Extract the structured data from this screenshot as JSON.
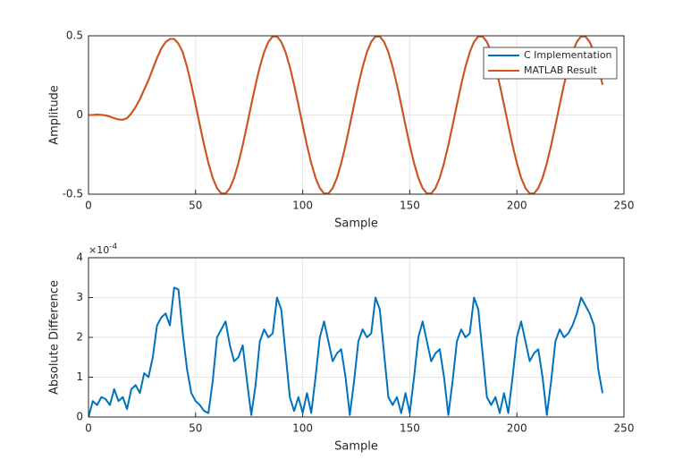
{
  "chart_data": [
    {
      "type": "line",
      "xlabel": "Sample",
      "ylabel": "Amplitude",
      "x": [
        0,
        2,
        4,
        6,
        8,
        10,
        12,
        14,
        16,
        18,
        20,
        22,
        24,
        26,
        28,
        30,
        32,
        34,
        36,
        38,
        40,
        42,
        44,
        46,
        48,
        50,
        52,
        54,
        56,
        58,
        60,
        62,
        64,
        66,
        68,
        70,
        72,
        74,
        76,
        78,
        80,
        82,
        84,
        86,
        88,
        90,
        92,
        94,
        96,
        98,
        100,
        102,
        104,
        106,
        108,
        110,
        112,
        114,
        116,
        118,
        120,
        122,
        124,
        126,
        128,
        130,
        132,
        134,
        136,
        138,
        140,
        142,
        144,
        146,
        148,
        150,
        152,
        154,
        156,
        158,
        160,
        162,
        164,
        166,
        168,
        170,
        172,
        174,
        176,
        178,
        180,
        182,
        184,
        186,
        188,
        190,
        192,
        194,
        196,
        198,
        200,
        202,
        204,
        206,
        208,
        210,
        212,
        214,
        216,
        218,
        220,
        222,
        224,
        226,
        228,
        230,
        232,
        234,
        236,
        238,
        240
      ],
      "series": [
        {
          "name": "C Implementation",
          "color": "#0072BD",
          "values": [
            0,
            0,
            0.002,
            0.001,
            -0.003,
            -0.01,
            -0.02,
            -0.028,
            -0.03,
            -0.02,
            0.01,
            0.05,
            0.1,
            0.16,
            0.22,
            0.29,
            0.36,
            0.42,
            0.46,
            0.48,
            0.48,
            0.45,
            0.397,
            0.304,
            0.191,
            0.065,
            -0.065,
            -0.191,
            -0.304,
            -0.397,
            -0.462,
            -0.496,
            -0.496,
            -0.462,
            -0.397,
            -0.304,
            -0.191,
            -0.065,
            0.065,
            0.191,
            0.304,
            0.397,
            0.462,
            0.496,
            0.496,
            0.462,
            0.397,
            0.304,
            0.191,
            0.065,
            -0.065,
            -0.191,
            -0.304,
            -0.397,
            -0.462,
            -0.496,
            -0.496,
            -0.462,
            -0.397,
            -0.304,
            -0.191,
            -0.065,
            0.065,
            0.191,
            0.304,
            0.397,
            0.462,
            0.496,
            0.496,
            0.462,
            0.397,
            0.304,
            0.191,
            0.065,
            -0.065,
            -0.191,
            -0.304,
            -0.397,
            -0.462,
            -0.496,
            -0.496,
            -0.462,
            -0.397,
            -0.304,
            -0.191,
            -0.065,
            0.065,
            0.191,
            0.304,
            0.397,
            0.462,
            0.496,
            0.496,
            0.462,
            0.397,
            0.304,
            0.191,
            0.065,
            -0.065,
            -0.191,
            -0.304,
            -0.397,
            -0.462,
            -0.496,
            -0.496,
            -0.462,
            -0.397,
            -0.304,
            -0.191,
            -0.065,
            0.065,
            0.191,
            0.304,
            0.397,
            0.462,
            0.496,
            0.496,
            0.462,
            0.397,
            0.304,
            0.191
          ]
        },
        {
          "name": "MATLAB Result",
          "color": "#D95319",
          "values": [
            0,
            0,
            0.002,
            0.001,
            -0.003,
            -0.01,
            -0.02,
            -0.028,
            -0.03,
            -0.02,
            0.01,
            0.05,
            0.1,
            0.16,
            0.22,
            0.29,
            0.36,
            0.42,
            0.46,
            0.48,
            0.48,
            0.45,
            0.397,
            0.304,
            0.191,
            0.065,
            -0.065,
            -0.191,
            -0.304,
            -0.397,
            -0.462,
            -0.496,
            -0.496,
            -0.462,
            -0.397,
            -0.304,
            -0.191,
            -0.065,
            0.065,
            0.191,
            0.304,
            0.397,
            0.462,
            0.496,
            0.496,
            0.462,
            0.397,
            0.304,
            0.191,
            0.065,
            -0.065,
            -0.191,
            -0.304,
            -0.397,
            -0.462,
            -0.496,
            -0.496,
            -0.462,
            -0.397,
            -0.304,
            -0.191,
            -0.065,
            0.065,
            0.191,
            0.304,
            0.397,
            0.462,
            0.496,
            0.496,
            0.462,
            0.397,
            0.304,
            0.191,
            0.065,
            -0.065,
            -0.191,
            -0.304,
            -0.397,
            -0.462,
            -0.496,
            -0.496,
            -0.462,
            -0.397,
            -0.304,
            -0.191,
            -0.065,
            0.065,
            0.191,
            0.304,
            0.397,
            0.462,
            0.496,
            0.496,
            0.462,
            0.397,
            0.304,
            0.191,
            0.065,
            -0.065,
            -0.191,
            -0.304,
            -0.397,
            -0.462,
            -0.496,
            -0.496,
            -0.462,
            -0.397,
            -0.304,
            -0.191,
            -0.065,
            0.065,
            0.191,
            0.304,
            0.397,
            0.462,
            0.496,
            0.496,
            0.462,
            0.397,
            0.304,
            0.191
          ]
        }
      ],
      "xlim": [
        0,
        250
      ],
      "xticks": [
        0,
        50,
        100,
        150,
        200,
        250
      ],
      "ylim": [
        -0.5,
        0.5
      ],
      "yticks": [
        -0.5,
        0,
        0.5
      ],
      "grid": true,
      "legend": "northeast"
    },
    {
      "type": "line",
      "xlabel": "Sample",
      "ylabel": "Absolute Difference",
      "y_exponent": {
        "base": "×10",
        "power": "-4"
      },
      "x": [
        0,
        2,
        4,
        6,
        8,
        10,
        12,
        14,
        16,
        18,
        20,
        22,
        24,
        26,
        28,
        30,
        32,
        34,
        36,
        38,
        40,
        42,
        44,
        46,
        48,
        50,
        52,
        54,
        56,
        58,
        60,
        62,
        64,
        66,
        68,
        70,
        72,
        74,
        76,
        78,
        80,
        82,
        84,
        86,
        88,
        90,
        92,
        94,
        96,
        98,
        100,
        102,
        104,
        106,
        108,
        110,
        112,
        114,
        116,
        118,
        120,
        122,
        124,
        126,
        128,
        130,
        132,
        134,
        136,
        138,
        140,
        142,
        144,
        146,
        148,
        150,
        152,
        154,
        156,
        158,
        160,
        162,
        164,
        166,
        168,
        170,
        172,
        174,
        176,
        178,
        180,
        182,
        184,
        186,
        188,
        190,
        192,
        194,
        196,
        198,
        200,
        202,
        204,
        206,
        208,
        210,
        212,
        214,
        216,
        218,
        220,
        222,
        224,
        226,
        228,
        230,
        232,
        234,
        236,
        238,
        240
      ],
      "color": "#0072BD",
      "values": [
        0,
        0.4,
        0.3,
        0.5,
        0.45,
        0.3,
        0.7,
        0.4,
        0.5,
        0.2,
        0.7,
        0.8,
        0.6,
        1.1,
        1.0,
        1.5,
        2.3,
        2.5,
        2.6,
        2.3,
        3.25,
        3.2,
        2.1,
        1.2,
        0.6,
        0.4,
        0.3,
        0.15,
        0.1,
        0.9,
        2.0,
        2.2,
        2.4,
        1.8,
        1.4,
        1.5,
        1.8,
        0.9,
        0.05,
        0.8,
        1.9,
        2.2,
        2.0,
        2.1,
        3.0,
        2.7,
        1.6,
        0.5,
        0.15,
        0.5,
        0.1,
        0.6,
        0.1,
        1.0,
        2.0,
        2.4,
        1.9,
        1.4,
        1.6,
        1.7,
        1.0,
        0.05,
        0.9,
        1.9,
        2.2,
        2.0,
        2.1,
        3.0,
        2.7,
        1.6,
        0.5,
        0.3,
        0.5,
        0.1,
        0.6,
        0.1,
        1.0,
        2.0,
        2.4,
        1.9,
        1.4,
        1.6,
        1.7,
        1.0,
        0.05,
        0.9,
        1.9,
        2.2,
        2.0,
        2.1,
        3.0,
        2.7,
        1.6,
        0.5,
        0.3,
        0.5,
        0.1,
        0.6,
        0.1,
        1.0,
        2.0,
        2.4,
        1.9,
        1.4,
        1.6,
        1.7,
        1.0,
        0.05,
        0.9,
        1.9,
        2.2,
        2.0,
        2.1,
        2.3,
        2.6,
        3.0,
        2.8,
        2.6,
        2.3,
        1.2,
        0.6
      ],
      "xlim": [
        0,
        250
      ],
      "xticks": [
        0,
        50,
        100,
        150,
        200,
        250
      ],
      "ylim": [
        0,
        4
      ],
      "yticks": [
        0,
        1,
        2,
        3,
        4
      ],
      "grid": true
    }
  ]
}
